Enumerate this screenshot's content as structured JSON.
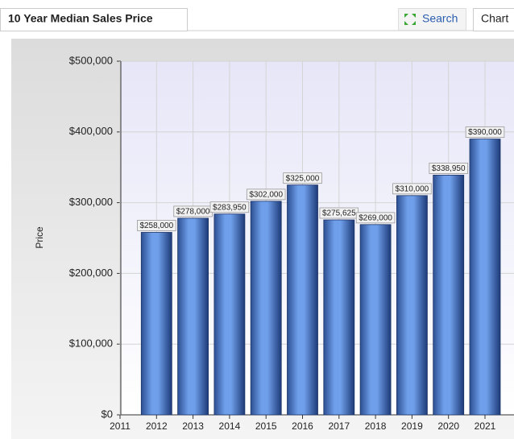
{
  "ui": {
    "title": "10 Year Median Sales Price",
    "search": "Search",
    "chart_tab": "Chart"
  },
  "chart_data": {
    "type": "bar",
    "y_label": "Price",
    "categories": [
      "2011",
      "2012",
      "2013",
      "2014",
      "2015",
      "2016",
      "2017",
      "2018",
      "2019",
      "2020",
      "2021"
    ],
    "values": [
      null,
      258000,
      278000,
      283950,
      302000,
      325000,
      275625,
      269000,
      310000,
      338950,
      390000
    ],
    "value_labels": [
      null,
      "$258,000",
      "$278,000",
      "$283,950",
      "$302,000",
      "$325,000",
      "$275,625",
      "$269,000",
      "$310,000",
      "$338,950",
      "$390,000"
    ],
    "color": "#6f9fea",
    "ylim": [
      0,
      500000
    ],
    "yticks": [
      {
        "value": 0,
        "label": "$0"
      },
      {
        "value": 100000,
        "label": "$100,000"
      },
      {
        "value": 200000,
        "label": "$200,000"
      },
      {
        "value": 300000,
        "label": "$300,000"
      },
      {
        "value": 400000,
        "label": "$400,000"
      },
      {
        "value": 500000,
        "label": "$500,000"
      }
    ],
    "grid": true
  }
}
